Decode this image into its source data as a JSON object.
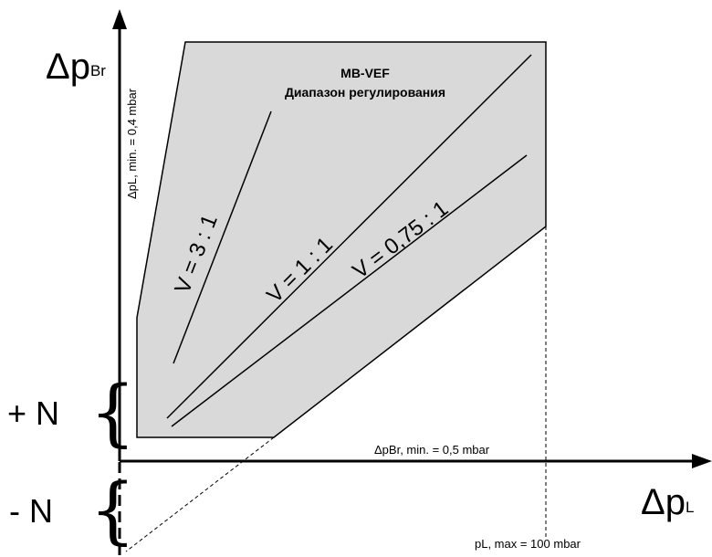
{
  "diagram": {
    "y_axis_label": {
      "symbol": "Δp",
      "subscript": "Br"
    },
    "x_axis_label": {
      "symbol": "Δp",
      "subscript": "L"
    },
    "title_line1": "MB-VEF",
    "title_line2": "Диапазон регулирования",
    "y_min_note": "ΔpL, min. = 0,4 mbar",
    "x_min_note": "ΔpBr, min. = 0,5 mbar",
    "x_max_note": "pL, max = 100 mbar",
    "ratio_lines": [
      {
        "label": "V = 3 : 1"
      },
      {
        "label": "V = 1 : 1"
      },
      {
        "label": "V = 0,75 : 1"
      }
    ],
    "plus_n": "+ N",
    "minus_n": "- N",
    "brace_glyph": "{",
    "colors": {
      "region_fill": "#d9d9d9",
      "stroke": "#000000",
      "background": "#ffffff"
    }
  }
}
